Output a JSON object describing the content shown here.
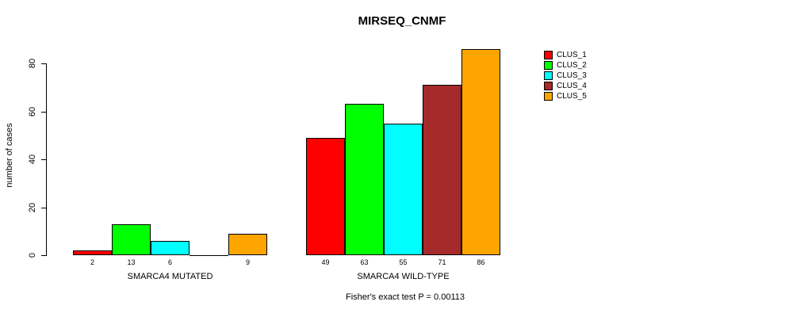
{
  "chart_data": {
    "type": "bar",
    "title": "MIRSEQ_CNMF",
    "ylabel": "number of cases",
    "xlabel": "",
    "ylim": [
      0,
      86
    ],
    "yticks": [
      0,
      20,
      40,
      60,
      80
    ],
    "grid": false,
    "legend_position": "right",
    "categories": [
      "SMARCA4 MUTATED",
      "SMARCA4 WILD-TYPE"
    ],
    "series": [
      {
        "name": "CLUS_1",
        "color": "#FF0000",
        "values": [
          2,
          49
        ]
      },
      {
        "name": "CLUS_2",
        "color": "#00FF00",
        "values": [
          13,
          63
        ]
      },
      {
        "name": "CLUS_3",
        "color": "#00FFFF",
        "values": [
          6,
          55
        ]
      },
      {
        "name": "CLUS_4",
        "color": "#A52A2A",
        "values": [
          0,
          71
        ]
      },
      {
        "name": "CLUS_5",
        "color": "#FFA500",
        "values": [
          9,
          86
        ]
      }
    ],
    "bar_labels": [
      [
        "2",
        "13",
        "6",
        "",
        "9"
      ],
      [
        "49",
        "63",
        "55",
        "71",
        "86"
      ]
    ],
    "annotation": "Fisher's exact test P = 0.00113"
  }
}
